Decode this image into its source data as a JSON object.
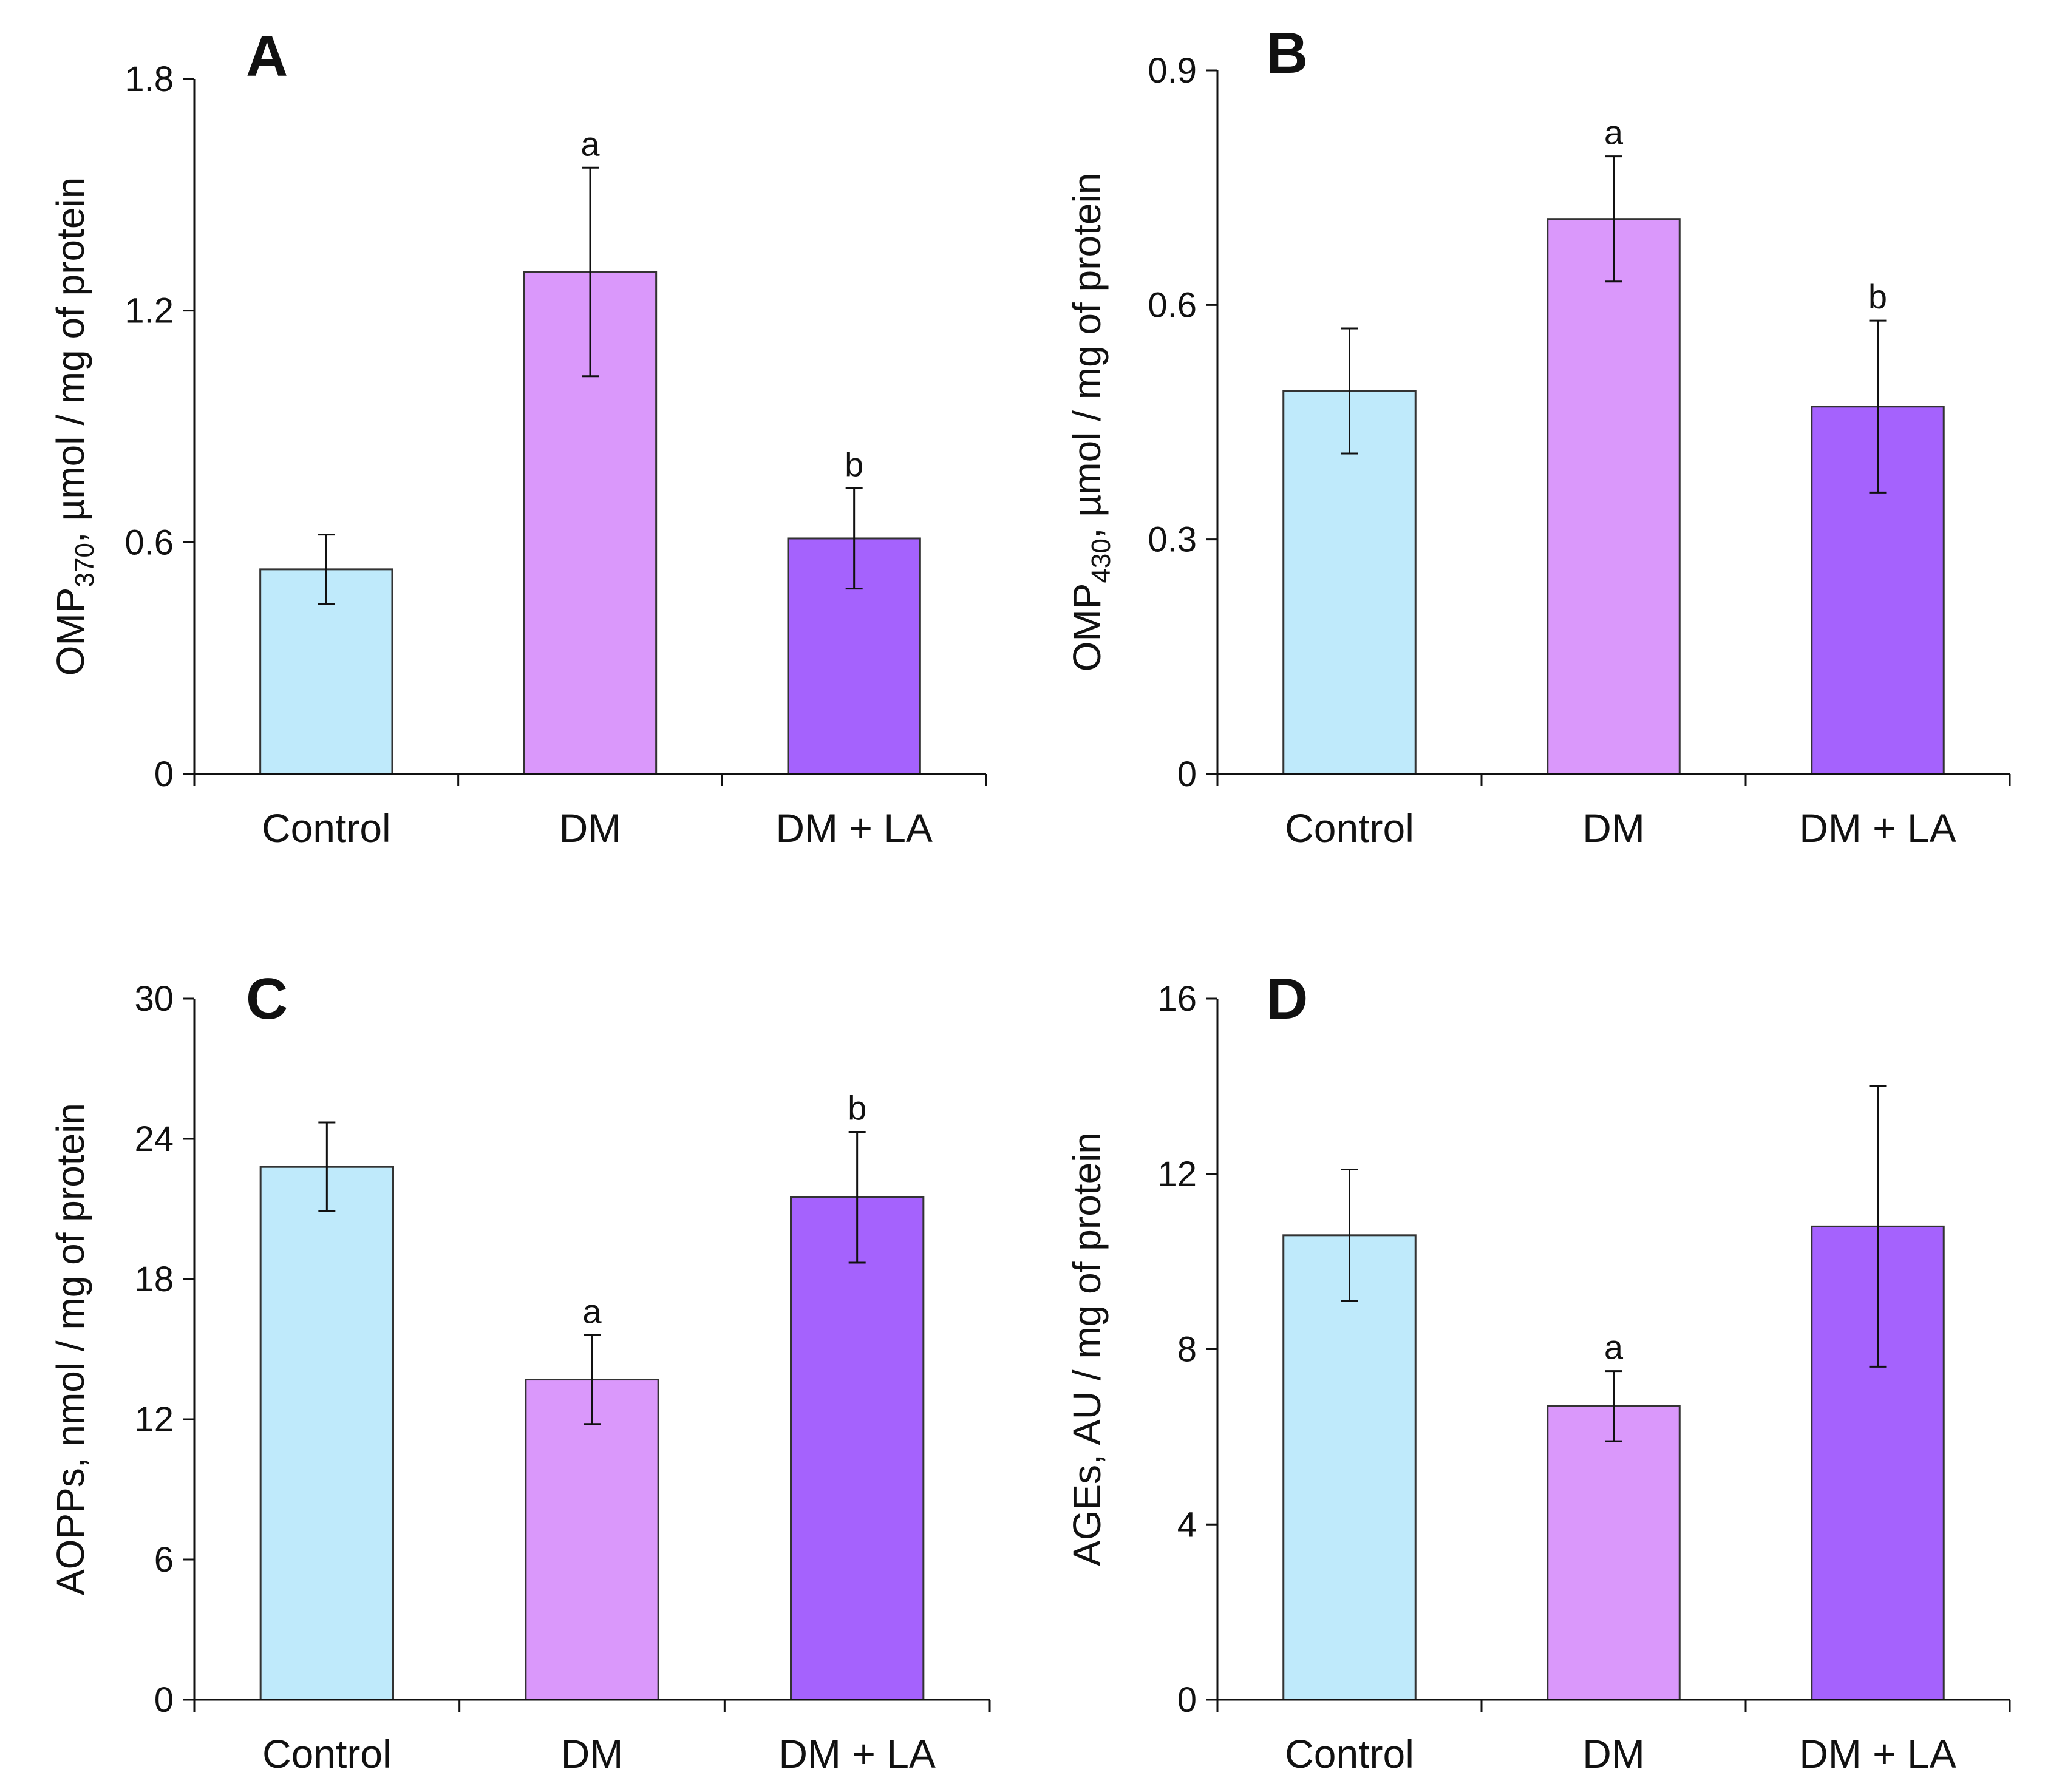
{
  "figure": {
    "categories": [
      "Control",
      "DM",
      "DM + LA"
    ],
    "colors": [
      "#bfeafb",
      "#da98fb",
      "#a562fd"
    ]
  },
  "chart_data": [
    {
      "panel": "A",
      "type": "bar",
      "categories": [
        "Control",
        "DM",
        "DM + LA"
      ],
      "values": [
        0.53,
        1.3,
        0.61
      ],
      "errors": [
        0.09,
        0.27,
        0.13
      ],
      "significance": [
        "",
        "a",
        "b"
      ],
      "ylabel_main": "OMP",
      "ylabel_sub": "370",
      "ylabel_rest": ", µmol / mg of protein",
      "ylim": [
        0,
        1.8
      ],
      "yticks": [
        "0",
        "0.6",
        "1.2",
        "1.8"
      ]
    },
    {
      "panel": "B",
      "type": "bar",
      "categories": [
        "Control",
        "DM",
        "DM + LA"
      ],
      "values": [
        0.49,
        0.71,
        0.47
      ],
      "errors": [
        0.08,
        0.08,
        0.11
      ],
      "significance": [
        "",
        "a",
        "b"
      ],
      "ylabel_main": "OMP",
      "ylabel_sub": "430",
      "ylabel_rest": ", µmol / mg of protein",
      "ylim": [
        0,
        0.9
      ],
      "yticks": [
        "0",
        "0.3",
        "0.6",
        "0.9"
      ]
    },
    {
      "panel": "C",
      "type": "bar",
      "categories": [
        "Control",
        "DM",
        "DM + LA"
      ],
      "values": [
        22.8,
        13.7,
        21.5
      ],
      "errors": [
        1.9,
        1.9,
        2.8
      ],
      "significance": [
        "",
        "a",
        "b"
      ],
      "ylabel_main": "AOPPs, nmol / mg of protein",
      "ylabel_sub": "",
      "ylabel_rest": "",
      "ylim": [
        0,
        30
      ],
      "yticks": [
        "0",
        "6",
        "12",
        "18",
        "24",
        "30"
      ]
    },
    {
      "panel": "D",
      "type": "bar",
      "categories": [
        "Control",
        "DM",
        "DM + LA"
      ],
      "values": [
        10.6,
        6.7,
        10.8
      ],
      "errors": [
        1.5,
        0.8,
        3.2
      ],
      "significance": [
        "",
        "a",
        ""
      ],
      "ylabel_main": "AGEs, AU / mg of protein",
      "ylabel_sub": "",
      "ylabel_rest": "",
      "ylim": [
        0,
        16
      ],
      "yticks": [
        "0",
        "4",
        "8",
        "12",
        "16"
      ]
    }
  ]
}
